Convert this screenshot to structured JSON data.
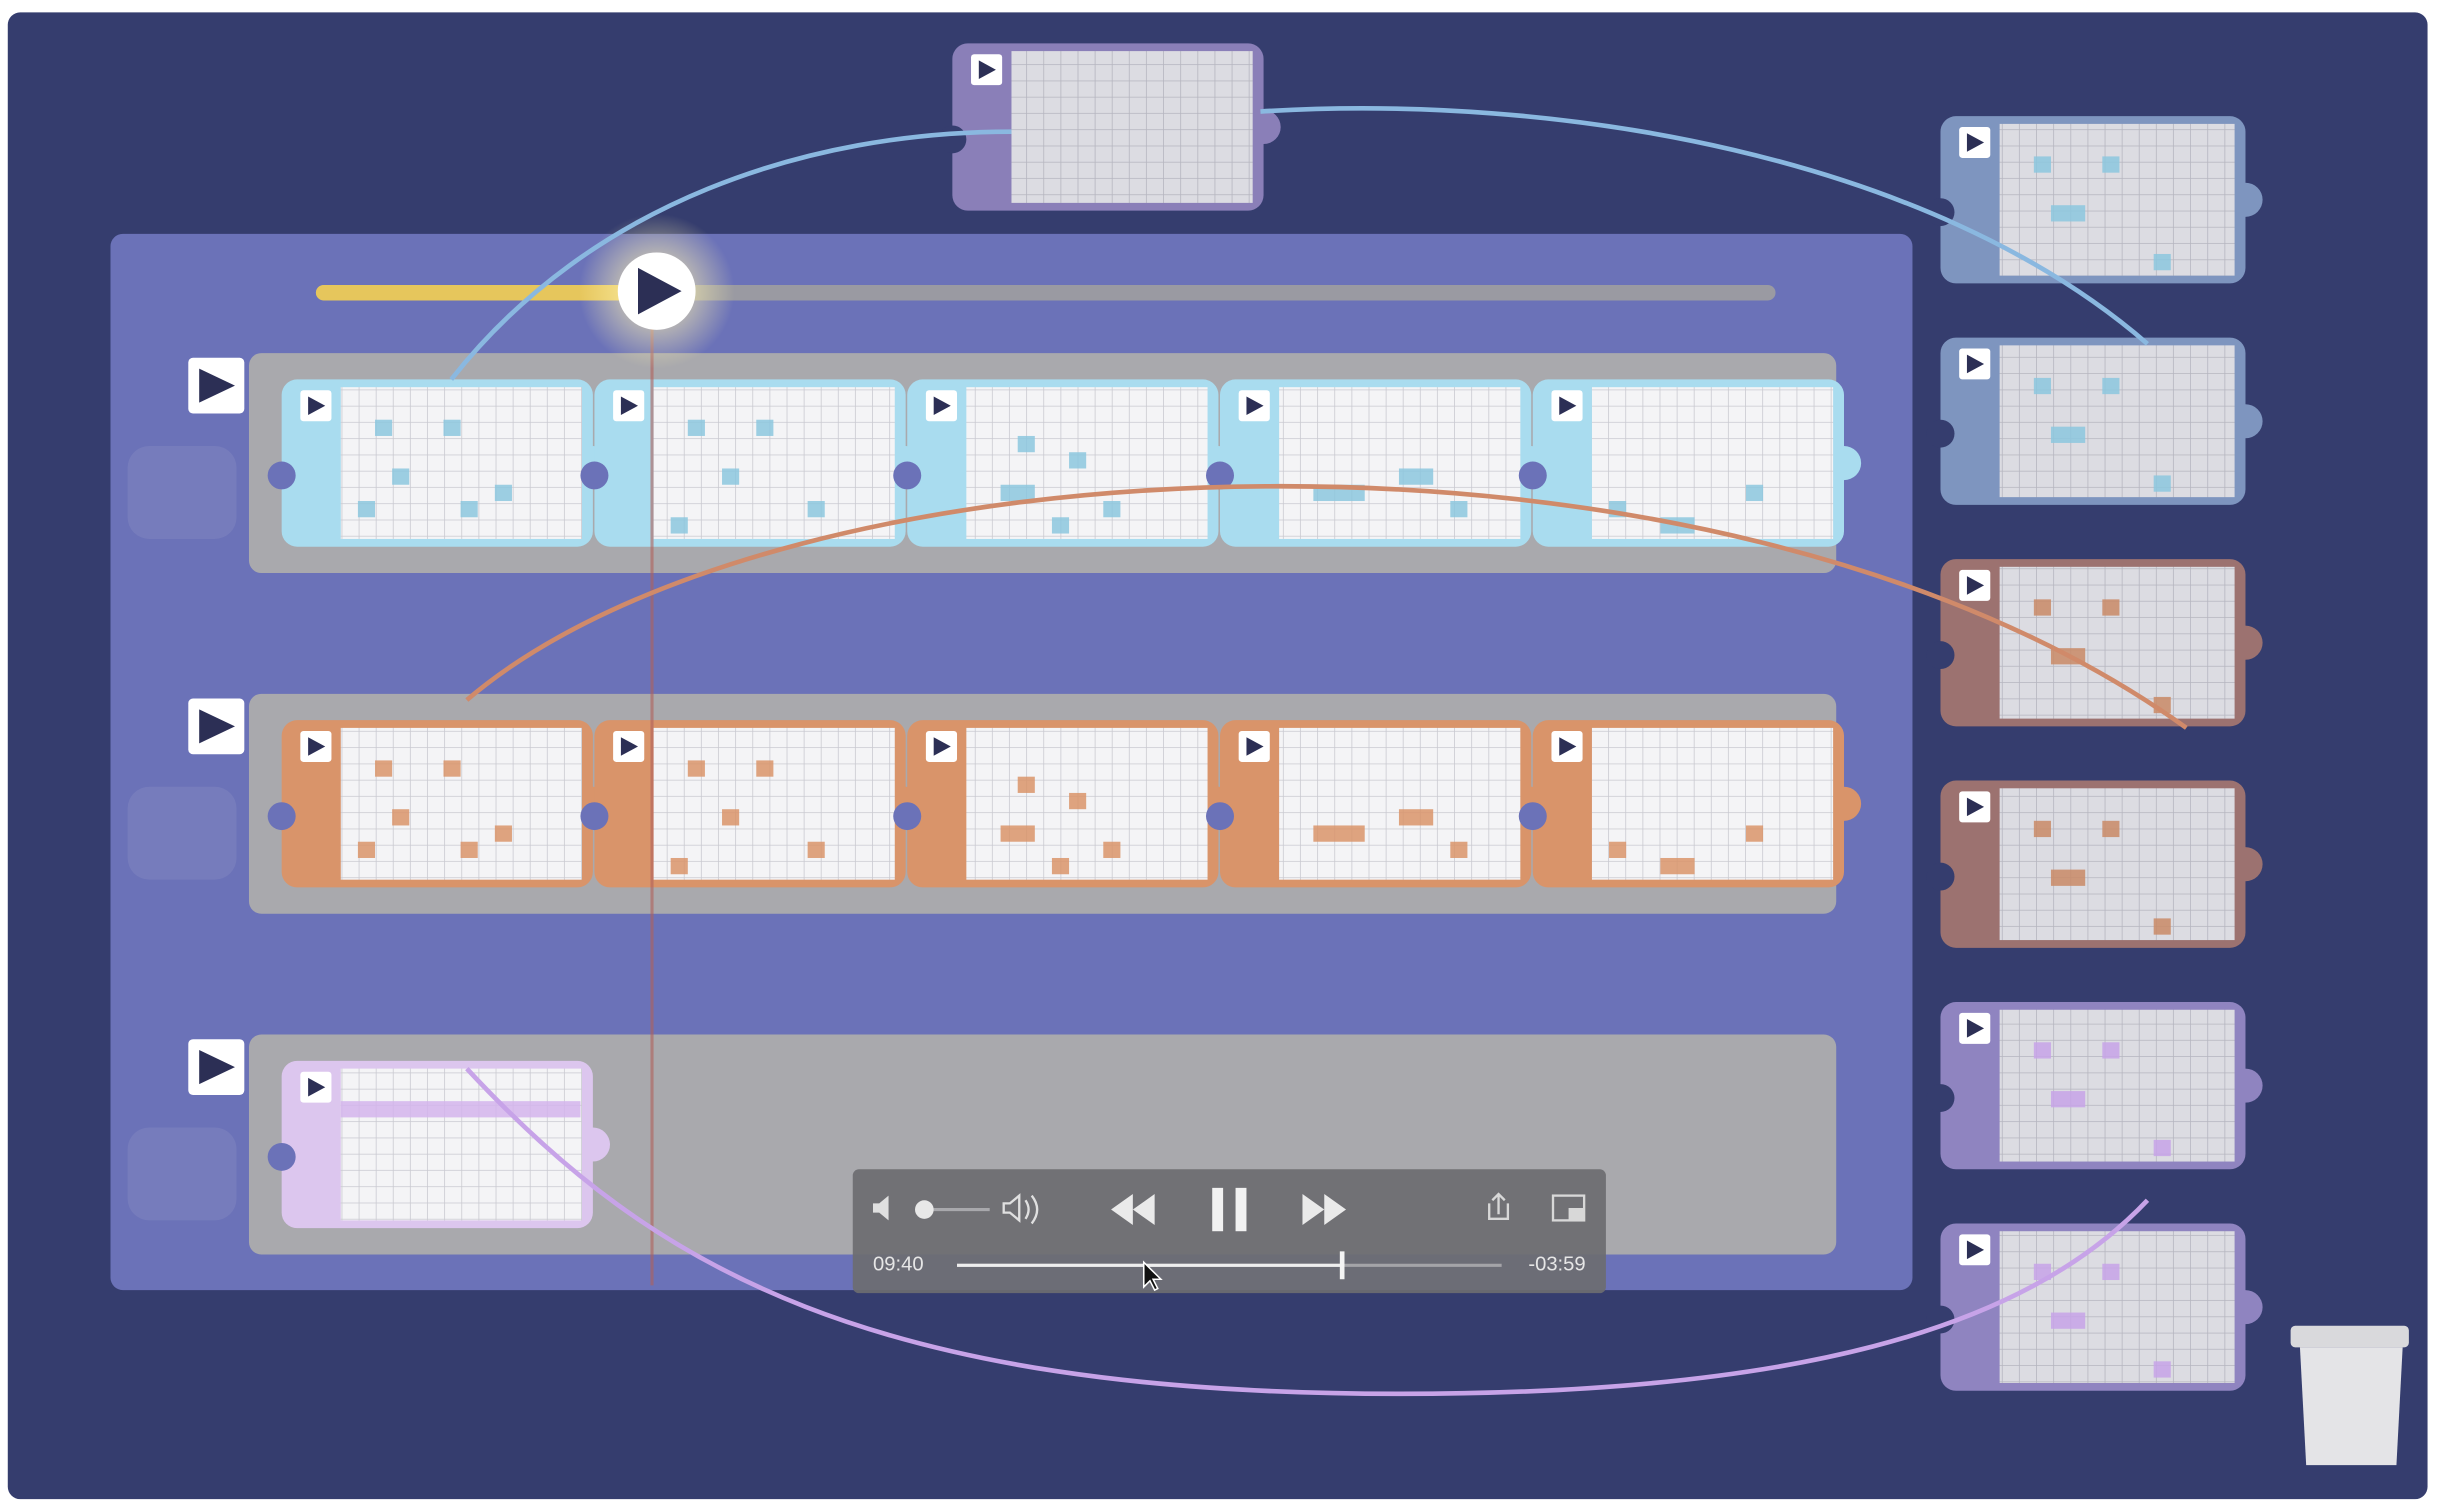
{
  "player": {
    "elapsed": "09:40",
    "remaining": "-03:59"
  }
}
